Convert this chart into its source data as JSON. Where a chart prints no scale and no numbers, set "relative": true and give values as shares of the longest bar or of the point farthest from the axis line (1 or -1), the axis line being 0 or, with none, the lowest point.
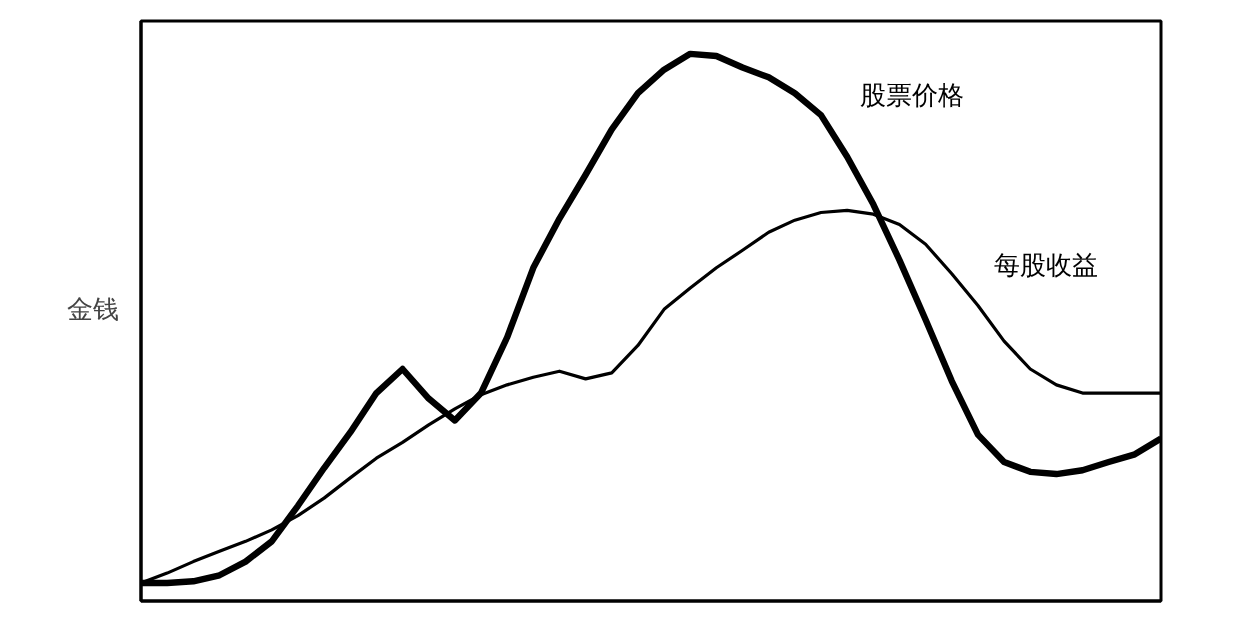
{
  "chart_data": {
    "type": "line",
    "relative": true,
    "ylabel": "金钱",
    "categories": [
      null,
      null,
      null,
      null,
      null,
      null,
      null,
      null,
      null,
      null,
      null,
      null,
      null,
      null,
      null,
      null,
      null,
      null,
      null,
      null,
      null,
      null,
      null,
      null,
      null,
      null,
      null,
      null,
      null,
      null,
      null,
      null,
      null,
      null,
      null,
      null,
      null,
      null,
      null,
      null
    ],
    "series": [
      {
        "name": "股票价格",
        "color": "#000000",
        "values": [
          0.033,
          0.033,
          0.036,
          0.047,
          0.072,
          0.109,
          0.174,
          0.243,
          0.308,
          0.38,
          0.424,
          0.37,
          0.33,
          0.38,
          0.482,
          0.609,
          0.699,
          0.779,
          0.862,
          0.928,
          0.971,
          1.0,
          0.996,
          0.975,
          0.957,
          0.928,
          0.888,
          0.812,
          0.725,
          0.623,
          0.514,
          0.402,
          0.304,
          0.254,
          0.236,
          0.232,
          0.239,
          0.254,
          0.268,
          0.297
        ]
      },
      {
        "name": "每股收益",
        "color": "#000000",
        "values": [
          0.033,
          0.051,
          0.072,
          0.091,
          0.109,
          0.13,
          0.156,
          0.188,
          0.225,
          0.261,
          0.29,
          0.322,
          0.351,
          0.377,
          0.395,
          0.409,
          0.42,
          0.406,
          0.417,
          0.467,
          0.533,
          0.572,
          0.609,
          0.641,
          0.674,
          0.696,
          0.71,
          0.714,
          0.707,
          0.688,
          0.652,
          0.598,
          0.54,
          0.475,
          0.424,
          0.395,
          0.38,
          0.38,
          0.38,
          0.38
        ]
      }
    ],
    "grid": false,
    "line_style": "solid",
    "marker": "none"
  }
}
